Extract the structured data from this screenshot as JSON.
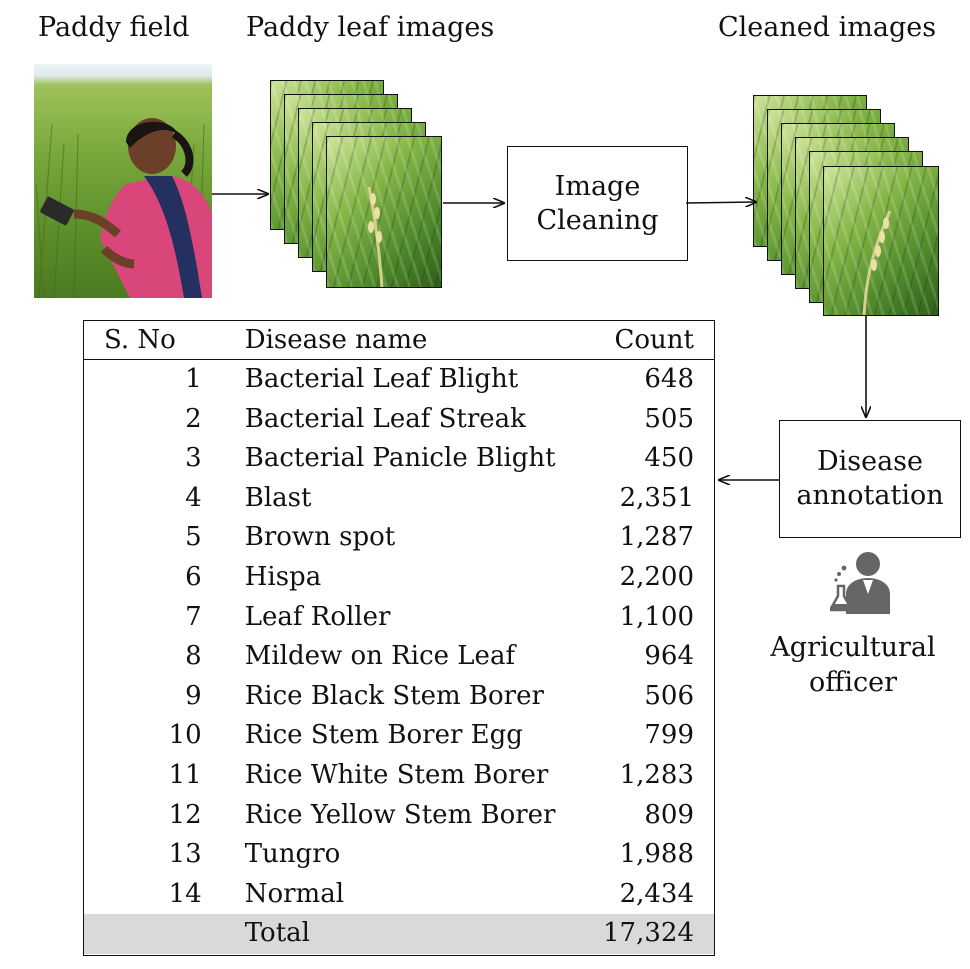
{
  "captions": {
    "paddy_field": "Paddy field",
    "leaf_images": "Paddy leaf images",
    "cleaned_images": "Cleaned images"
  },
  "process_boxes": {
    "cleaning": [
      "Image",
      "Cleaning"
    ],
    "annotation": [
      "Disease",
      "annotation"
    ]
  },
  "officer_label": [
    "Agricultural",
    "officer"
  ],
  "table": {
    "headers": {
      "no": "S. No",
      "name": "Disease name",
      "count": "Count"
    },
    "rows": [
      {
        "no": "1",
        "name": "Bacterial Leaf Blight",
        "count": "648"
      },
      {
        "no": "2",
        "name": "Bacterial Leaf Streak",
        "count": "505"
      },
      {
        "no": "3",
        "name": "Bacterial Panicle Blight",
        "count": "450"
      },
      {
        "no": "4",
        "name": "Blast",
        "count": "2,351"
      },
      {
        "no": "5",
        "name": "Brown spot",
        "count": "1,287"
      },
      {
        "no": "6",
        "name": "Hispa",
        "count": "2,200"
      },
      {
        "no": "7",
        "name": "Leaf Roller",
        "count": "1,100"
      },
      {
        "no": "8",
        "name": "Mildew on Rice Leaf",
        "count": "964"
      },
      {
        "no": "9",
        "name": "Rice Black Stem Borer",
        "count": "506"
      },
      {
        "no": "10",
        "name": "Rice Stem Borer Egg",
        "count": "799"
      },
      {
        "no": "11",
        "name": "Rice White Stem Borer",
        "count": "1,283"
      },
      {
        "no": "12",
        "name": "Rice Yellow Stem Borer",
        "count": "809"
      },
      {
        "no": "13",
        "name": "Tungro",
        "count": "1,988"
      },
      {
        "no": "14",
        "name": "Normal",
        "count": "2,434"
      }
    ],
    "total": {
      "label": "Total",
      "count": "17,324"
    }
  },
  "colors": {
    "total_row_bg": "#d9d9d9",
    "icon_gray": "#666666"
  },
  "icons": {
    "officer": "scientist-with-flask-icon"
  }
}
